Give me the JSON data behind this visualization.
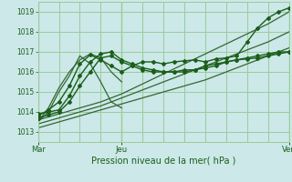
{
  "background_color": "#cce8e8",
  "grid_color": "#99cc99",
  "xlim": [
    0,
    72
  ],
  "ylim": [
    1012.5,
    1019.5
  ],
  "yticks": [
    1013,
    1014,
    1015,
    1016,
    1017,
    1018,
    1019
  ],
  "xtick_positions": [
    0,
    24,
    72
  ],
  "xtick_labels": [
    "Mar",
    "Jeu",
    "Ven"
  ],
  "xlabel": "Pression niveau de la mer( hPa )",
  "series": [
    {
      "x": [
        0,
        6,
        12,
        18,
        24,
        30,
        36,
        42,
        48,
        54,
        60,
        66,
        72
      ],
      "y": [
        1013.2,
        1013.5,
        1013.8,
        1014.1,
        1014.4,
        1014.7,
        1015.0,
        1015.3,
        1015.6,
        1016.0,
        1016.4,
        1016.8,
        1017.2
      ],
      "marker": null,
      "lw": 0.9,
      "color": "#336633"
    },
    {
      "x": [
        0,
        6,
        12,
        18,
        24,
        30,
        36,
        42,
        48,
        54,
        60,
        66,
        72
      ],
      "y": [
        1013.4,
        1013.7,
        1014.0,
        1014.3,
        1014.7,
        1015.1,
        1015.5,
        1015.9,
        1016.3,
        1016.7,
        1017.1,
        1017.5,
        1018.0
      ],
      "marker": null,
      "lw": 0.9,
      "color": "#336633"
    },
    {
      "x": [
        0,
        6,
        12,
        18,
        24,
        30,
        36,
        42,
        48,
        54,
        60,
        66,
        72
      ],
      "y": [
        1013.6,
        1013.9,
        1014.2,
        1014.5,
        1014.9,
        1015.4,
        1015.9,
        1016.4,
        1016.9,
        1017.4,
        1017.9,
        1018.4,
        1019.0
      ],
      "marker": null,
      "lw": 0.9,
      "color": "#336633"
    },
    {
      "x": [
        0,
        3,
        6,
        9,
        12,
        15,
        18,
        21,
        24,
        27,
        30,
        33,
        36,
        39,
        42,
        45,
        48,
        51,
        54,
        57,
        60,
        63,
        66,
        69,
        72
      ],
      "y": [
        1013.7,
        1013.85,
        1014.0,
        1014.5,
        1015.3,
        1016.0,
        1016.7,
        1016.8,
        1016.5,
        1016.3,
        1016.1,
        1016.0,
        1016.0,
        1016.0,
        1016.0,
        1016.1,
        1016.2,
        1016.3,
        1016.5,
        1016.6,
        1016.7,
        1016.8,
        1016.9,
        1017.0,
        1017.0
      ],
      "marker": "D",
      "ms": 2.0,
      "lw": 1.0,
      "color": "#1a5e1a"
    },
    {
      "x": [
        0,
        3,
        6,
        9,
        12,
        15,
        18,
        21,
        24,
        27,
        30,
        33,
        36,
        39,
        42,
        45,
        48,
        51,
        54,
        57,
        60,
        63,
        66,
        69,
        72
      ],
      "y": [
        1013.9,
        1014.0,
        1014.1,
        1014.8,
        1015.8,
        1016.5,
        1016.9,
        1017.0,
        1016.6,
        1016.4,
        1016.2,
        1016.1,
        1016.0,
        1016.0,
        1016.1,
        1016.1,
        1016.3,
        1016.4,
        1016.5,
        1016.6,
        1016.65,
        1016.7,
        1016.8,
        1016.9,
        1017.0
      ],
      "marker": "D",
      "ms": 2.0,
      "lw": 1.0,
      "color": "#1a5e1a"
    },
    {
      "x": [
        0,
        3,
        6,
        9,
        12,
        15,
        18,
        21,
        24,
        27,
        30,
        33,
        36,
        39,
        42,
        45,
        48,
        51,
        54,
        57,
        60,
        63,
        66,
        69,
        72
      ],
      "y": [
        1013.8,
        1014.1,
        1014.5,
        1015.3,
        1016.4,
        1016.85,
        1016.6,
        1016.3,
        1016.0,
        1016.3,
        1016.5,
        1016.5,
        1016.4,
        1016.5,
        1016.55,
        1016.6,
        1016.5,
        1016.65,
        1016.7,
        1016.8,
        1017.5,
        1018.2,
        1018.7,
        1019.0,
        1019.2
      ],
      "marker": "D",
      "ms": 2.0,
      "lw": 1.0,
      "color": "#1a5e1a"
    },
    {
      "x": [
        0,
        3,
        6,
        9,
        12,
        15,
        18,
        21,
        24
      ],
      "y": [
        1013.5,
        1014.0,
        1015.0,
        1015.8,
        1016.8,
        1016.4,
        1015.5,
        1014.5,
        1014.2
      ],
      "marker": null,
      "lw": 0.9,
      "color": "#336633"
    },
    {
      "x": [
        0,
        3,
        6,
        9,
        12,
        15,
        18,
        21,
        24
      ],
      "y": [
        1013.5,
        1014.2,
        1015.2,
        1016.0,
        1016.6,
        1016.9,
        1016.7,
        1016.0,
        1015.5
      ],
      "marker": null,
      "lw": 0.9,
      "color": "#336633"
    }
  ]
}
